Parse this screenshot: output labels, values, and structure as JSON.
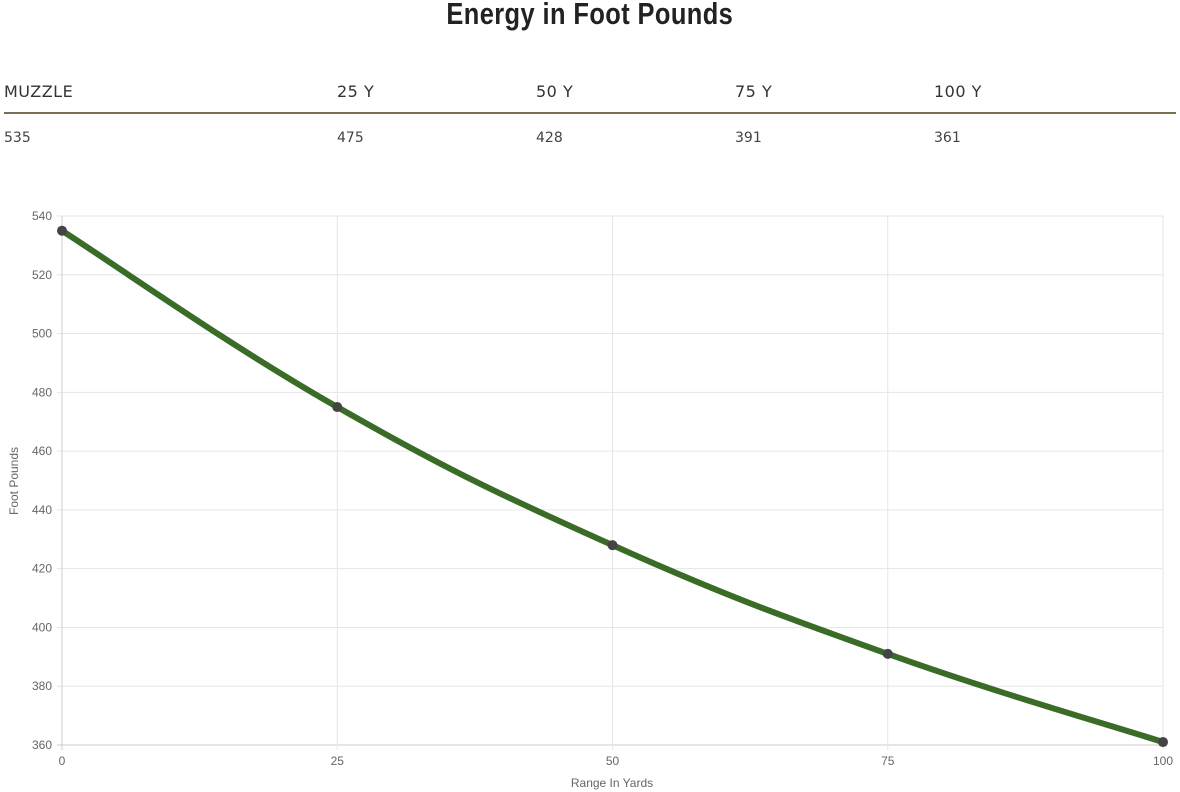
{
  "title": "Energy in Foot Pounds",
  "table": {
    "headers": [
      "MUZZLE",
      "25 Y",
      "50 Y",
      "75 Y",
      "100 Y"
    ],
    "values": [
      "535",
      "475",
      "428",
      "391",
      "361"
    ]
  },
  "chart_data": {
    "type": "line",
    "x": [
      0,
      25,
      50,
      75,
      100
    ],
    "series": [
      {
        "values": [
          535,
          475,
          428,
          391,
          361
        ]
      }
    ],
    "xlabel": "Range In Yards",
    "ylabel": "Foot Pounds",
    "xlim": [
      0,
      100
    ],
    "ylim": [
      360,
      540
    ],
    "xticks": [
      0,
      25,
      50,
      75,
      100
    ],
    "yticks": [
      360,
      380,
      400,
      420,
      440,
      460,
      480,
      500,
      520,
      540
    ],
    "grid": true,
    "legend": "none",
    "colors": {
      "line": "#3a6b27",
      "points": "#444444",
      "grid": "#e6e6e6"
    }
  }
}
